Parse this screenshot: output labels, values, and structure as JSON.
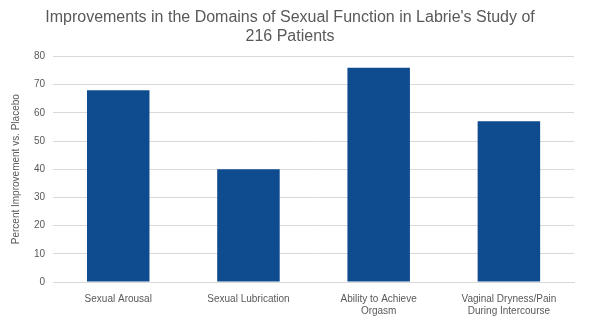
{
  "chart_data": {
    "type": "bar",
    "title": "Improvements in the Domains of Sexual Function in Labrie's Study of 216 Patients",
    "y_label": "Percent Improvement vs. Placebo",
    "categories": [
      "Sexual Arousal",
      "Sexual Lubrication",
      "Ability to Achieve Orgasm",
      "Vaginal Dryness/Pain During Intercourse"
    ],
    "values": [
      68,
      40,
      76,
      57
    ],
    "color": "#0f4c8f",
    "ylim": [
      0,
      80
    ],
    "yticks": [
      0,
      10,
      20,
      30,
      40,
      50,
      60,
      70,
      80
    ],
    "grid": true
  }
}
